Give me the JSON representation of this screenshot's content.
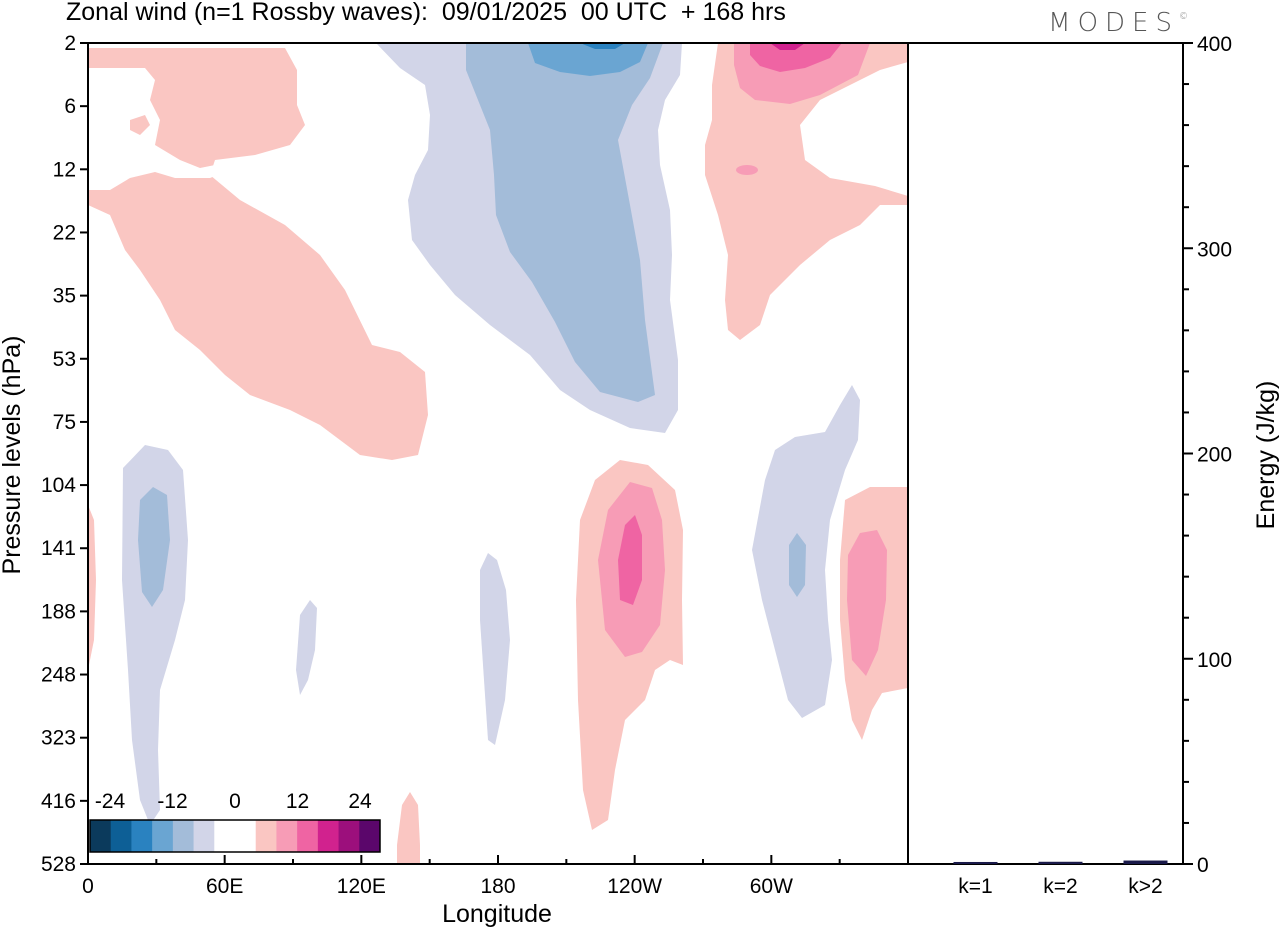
{
  "title": "Zonal wind (n=1 Rossby waves):  09/01/2025  00 UTC  + 168 hrs",
  "logo": {
    "text": "MODES",
    "mark": "©"
  },
  "chart_data": [
    {
      "type": "heatmap",
      "title": "Zonal wind (n=1 Rossby waves):  09/01/2025  00 UTC  + 168 hrs",
      "xlabel": "Longitude",
      "ylabel": "Pressure levels (hPa)",
      "x_ticks": [
        "0",
        "60E",
        "120E",
        "180",
        "120W",
        "60W"
      ],
      "x_tick_degrees": [
        0,
        60,
        120,
        180,
        240,
        300
      ],
      "xlim": [
        0,
        360
      ],
      "y_ticks": [
        "2",
        "6",
        "12",
        "22",
        "35",
        "53",
        "75",
        "104",
        "141",
        "188",
        "248",
        "323",
        "416",
        "528"
      ],
      "y_inverted": true,
      "colorbar": {
        "tick_labels": [
          "-24",
          "-12",
          "0",
          "12",
          "24"
        ],
        "colors": [
          "#0b3a5c",
          "#0d5f96",
          "#2a82c0",
          "#6aa5d2",
          "#a3bcd9",
          "#d2d5e8",
          "#ffffff",
          "#ffffff",
          "#fac6c2",
          "#f79cb6",
          "#ef64a3",
          "#d1228e",
          "#9c0f7c",
          "#5b066b"
        ]
      },
      "regions": [
        {
          "sign": "positive",
          "level": 1,
          "lon": [
            0,
            150
          ],
          "levels": [
            "2",
            "104"
          ],
          "note": "stratospheric positive tongue"
        },
        {
          "sign": "negative",
          "level": 1,
          "lon": [
            140,
            260
          ],
          "levels": [
            "2",
            "75"
          ]
        },
        {
          "sign": "negative",
          "level": 2,
          "lon": [
            160,
            250
          ],
          "levels": [
            "2",
            "75"
          ]
        },
        {
          "sign": "negative",
          "level": 3,
          "lon": [
            195,
            240
          ],
          "levels": [
            "2",
            "6"
          ]
        },
        {
          "sign": "negative",
          "level": 4,
          "lon": [
            215,
            235
          ],
          "levels": [
            "2",
            "2"
          ]
        },
        {
          "sign": "positive",
          "level": 1,
          "lon": [
            275,
            360
          ],
          "levels": [
            "2",
            "53"
          ]
        },
        {
          "sign": "positive",
          "level": 2,
          "lon": [
            285,
            330
          ],
          "levels": [
            "2",
            "6"
          ]
        },
        {
          "sign": "positive",
          "level": 3,
          "lon": [
            295,
            325
          ],
          "levels": [
            "2",
            "2"
          ]
        },
        {
          "sign": "negative",
          "level": 1,
          "lon": [
            15,
            45
          ],
          "levels": [
            "75",
            "528"
          ]
        },
        {
          "sign": "negative",
          "level": 2,
          "lon": [
            22,
            37
          ],
          "levels": [
            "104",
            "188"
          ]
        },
        {
          "sign": "negative",
          "level": 1,
          "lon": [
            90,
            100
          ],
          "levels": [
            "188",
            "248"
          ]
        },
        {
          "sign": "negative",
          "level": 1,
          "lon": [
            170,
            185
          ],
          "levels": [
            "141",
            "323"
          ]
        },
        {
          "sign": "positive",
          "level": 1,
          "lon": [
            210,
            260
          ],
          "levels": [
            "75",
            "416"
          ]
        },
        {
          "sign": "positive",
          "level": 2,
          "lon": [
            225,
            255
          ],
          "levels": [
            "104",
            "248"
          ]
        },
        {
          "sign": "positive",
          "level": 3,
          "lon": [
            232,
            248
          ],
          "levels": [
            "141",
            "188"
          ]
        },
        {
          "sign": "negative",
          "level": 1,
          "lon": [
            295,
            340
          ],
          "levels": [
            "75",
            "323"
          ]
        },
        {
          "sign": "negative",
          "level": 2,
          "lon": [
            309,
            317
          ],
          "levels": [
            "141",
            "188"
          ]
        },
        {
          "sign": "positive",
          "level": 1,
          "lon": [
            330,
            360
          ],
          "levels": [
            "104",
            "323"
          ]
        },
        {
          "sign": "positive",
          "level": 2,
          "lon": [
            335,
            352
          ],
          "levels": [
            "141",
            "248"
          ]
        },
        {
          "sign": "positive",
          "level": 1,
          "lon": [
            135,
            145
          ],
          "levels": [
            "416",
            "528"
          ]
        }
      ]
    },
    {
      "type": "bar",
      "ylabel": "Energy (J/kg)",
      "categories": [
        "k=1",
        "k=2",
        "k>2"
      ],
      "values": [
        0.5,
        0.6,
        1.2
      ],
      "ylim": [
        0,
        400
      ],
      "y_ticks": [
        "0",
        "100",
        "200",
        "300",
        "400"
      ],
      "bar_color": "#1a1a4a"
    }
  ]
}
